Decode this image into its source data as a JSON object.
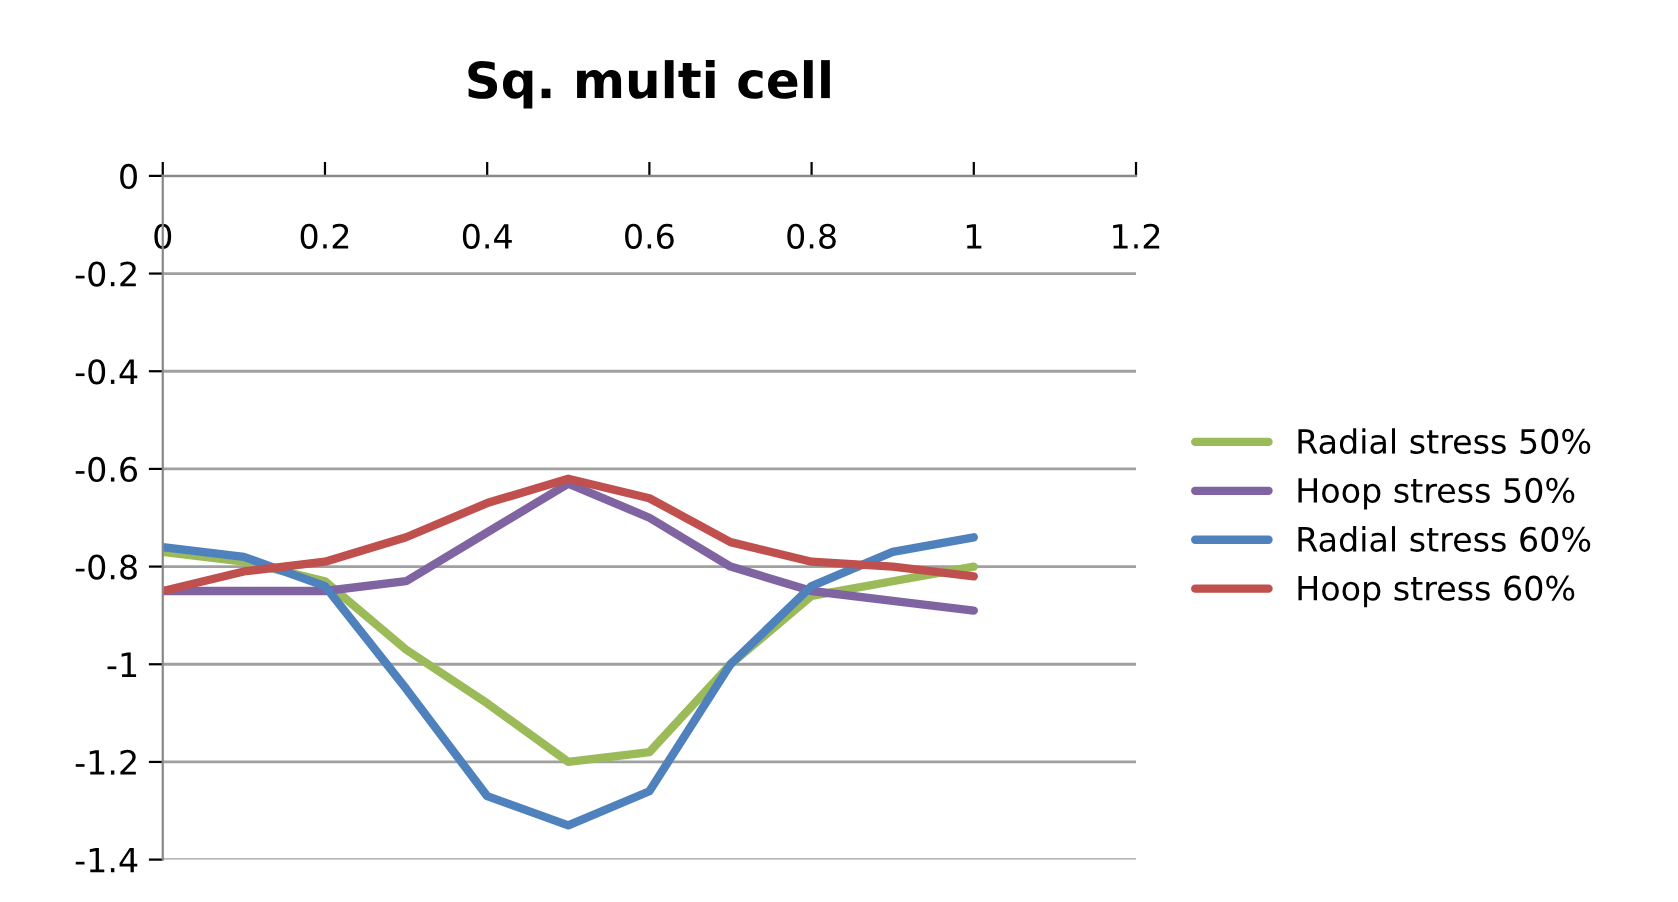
{
  "chart_data": {
    "type": "line",
    "title": "Sq. multi cell",
    "x": [
      0,
      0.1,
      0.2,
      0.3,
      0.4,
      0.5,
      0.6,
      0.7,
      0.8,
      0.9,
      1
    ],
    "series": [
      {
        "name": "Radial stress 50%",
        "color": "#9bbb59",
        "values": [
          -0.77,
          -0.79,
          -0.83,
          -0.97,
          -1.08,
          -1.2,
          -1.18,
          -1.0,
          -0.86,
          -0.83,
          -0.8
        ]
      },
      {
        "name": "Hoop stress 50%",
        "color": "#8064a2",
        "values": [
          -0.85,
          -0.85,
          -0.85,
          -0.83,
          -0.73,
          -0.63,
          -0.7,
          -0.8,
          -0.85,
          -0.87,
          -0.89
        ]
      },
      {
        "name": "Radial stress 60%",
        "color": "#4f81bd",
        "values": [
          -0.76,
          -0.78,
          -0.84,
          -1.05,
          -1.27,
          -1.33,
          -1.26,
          -1.0,
          -0.84,
          -0.77,
          -0.74
        ]
      },
      {
        "name": "Hoop stress 60%",
        "color": "#c0504d",
        "values": [
          -0.85,
          -0.81,
          -0.79,
          -0.74,
          -0.67,
          -0.62,
          -0.66,
          -0.75,
          -0.79,
          -0.8,
          -0.82
        ]
      }
    ],
    "xlim": [
      0,
      1.2
    ],
    "xticks": [
      0,
      0.2,
      0.4,
      0.6,
      0.8,
      1,
      1.2
    ],
    "ylim": [
      -1.4,
      0
    ],
    "yticks": [
      0,
      -0.2,
      -0.4,
      -0.6,
      -0.8,
      -1,
      -1.2,
      -1.4
    ],
    "grid": "y",
    "legend": "right",
    "marker": "none",
    "line_style": "solid"
  }
}
